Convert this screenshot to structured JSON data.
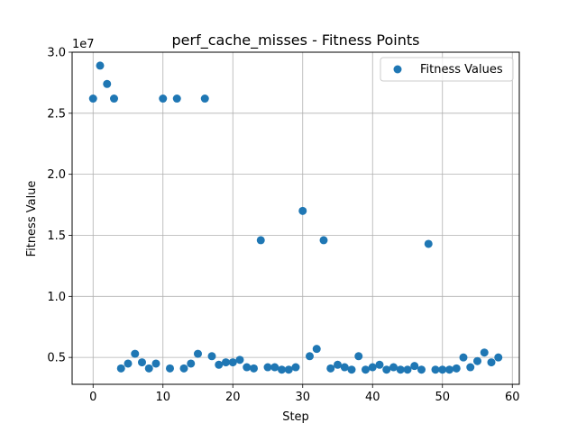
{
  "chart_data": {
    "type": "scatter",
    "title": "perf_cache_misses - Fitness Points",
    "xlabel": "Step",
    "ylabel": "Fitness Value",
    "y_multiplier_label": "1e7",
    "xlim": [
      -3,
      61
    ],
    "ylim": [
      2800000,
      30000000
    ],
    "x_ticks": [
      0,
      10,
      20,
      30,
      40,
      50,
      60
    ],
    "x_tick_labels": [
      "0",
      "10",
      "20",
      "30",
      "40",
      "50",
      "60"
    ],
    "y_ticks": [
      5000000,
      10000000,
      15000000,
      20000000,
      25000000,
      30000000
    ],
    "y_tick_labels": [
      "0.5",
      "1.0",
      "1.5",
      "2.0",
      "2.5",
      "3.0"
    ],
    "grid": true,
    "legend_position": "top-right",
    "marker_color": "#1f77b4",
    "series": [
      {
        "name": "Fitness Values",
        "x": [
          0,
          1,
          2,
          3,
          4,
          5,
          6,
          7,
          8,
          9,
          10,
          11,
          12,
          13,
          14,
          15,
          16,
          17,
          18,
          19,
          20,
          21,
          22,
          23,
          24,
          25,
          26,
          27,
          28,
          29,
          30,
          31,
          32,
          33,
          34,
          35,
          36,
          37,
          38,
          39,
          40,
          41,
          42,
          43,
          44,
          45,
          46,
          47,
          48,
          49,
          50,
          51,
          52,
          53,
          54,
          55,
          56,
          57,
          58
        ],
        "y": [
          26200000,
          28900000,
          27400000,
          26200000,
          4100000,
          4500000,
          5300000,
          4600000,
          4100000,
          4500000,
          26200000,
          4100000,
          26200000,
          4100000,
          4500000,
          5300000,
          26200000,
          5100000,
          4400000,
          4600000,
          4600000,
          4800000,
          4200000,
          4100000,
          14600000,
          4200000,
          4200000,
          4000000,
          4000000,
          4200000,
          17000000,
          5100000,
          5700000,
          14600000,
          4100000,
          4400000,
          4200000,
          4000000,
          5100000,
          4000000,
          4200000,
          4400000,
          4000000,
          4200000,
          4000000,
          4000000,
          4300000,
          4000000,
          14300000,
          4000000,
          4000000,
          4000000,
          4100000,
          5000000,
          4200000,
          4700000,
          5400000,
          4600000,
          5000000
        ]
      }
    ]
  }
}
